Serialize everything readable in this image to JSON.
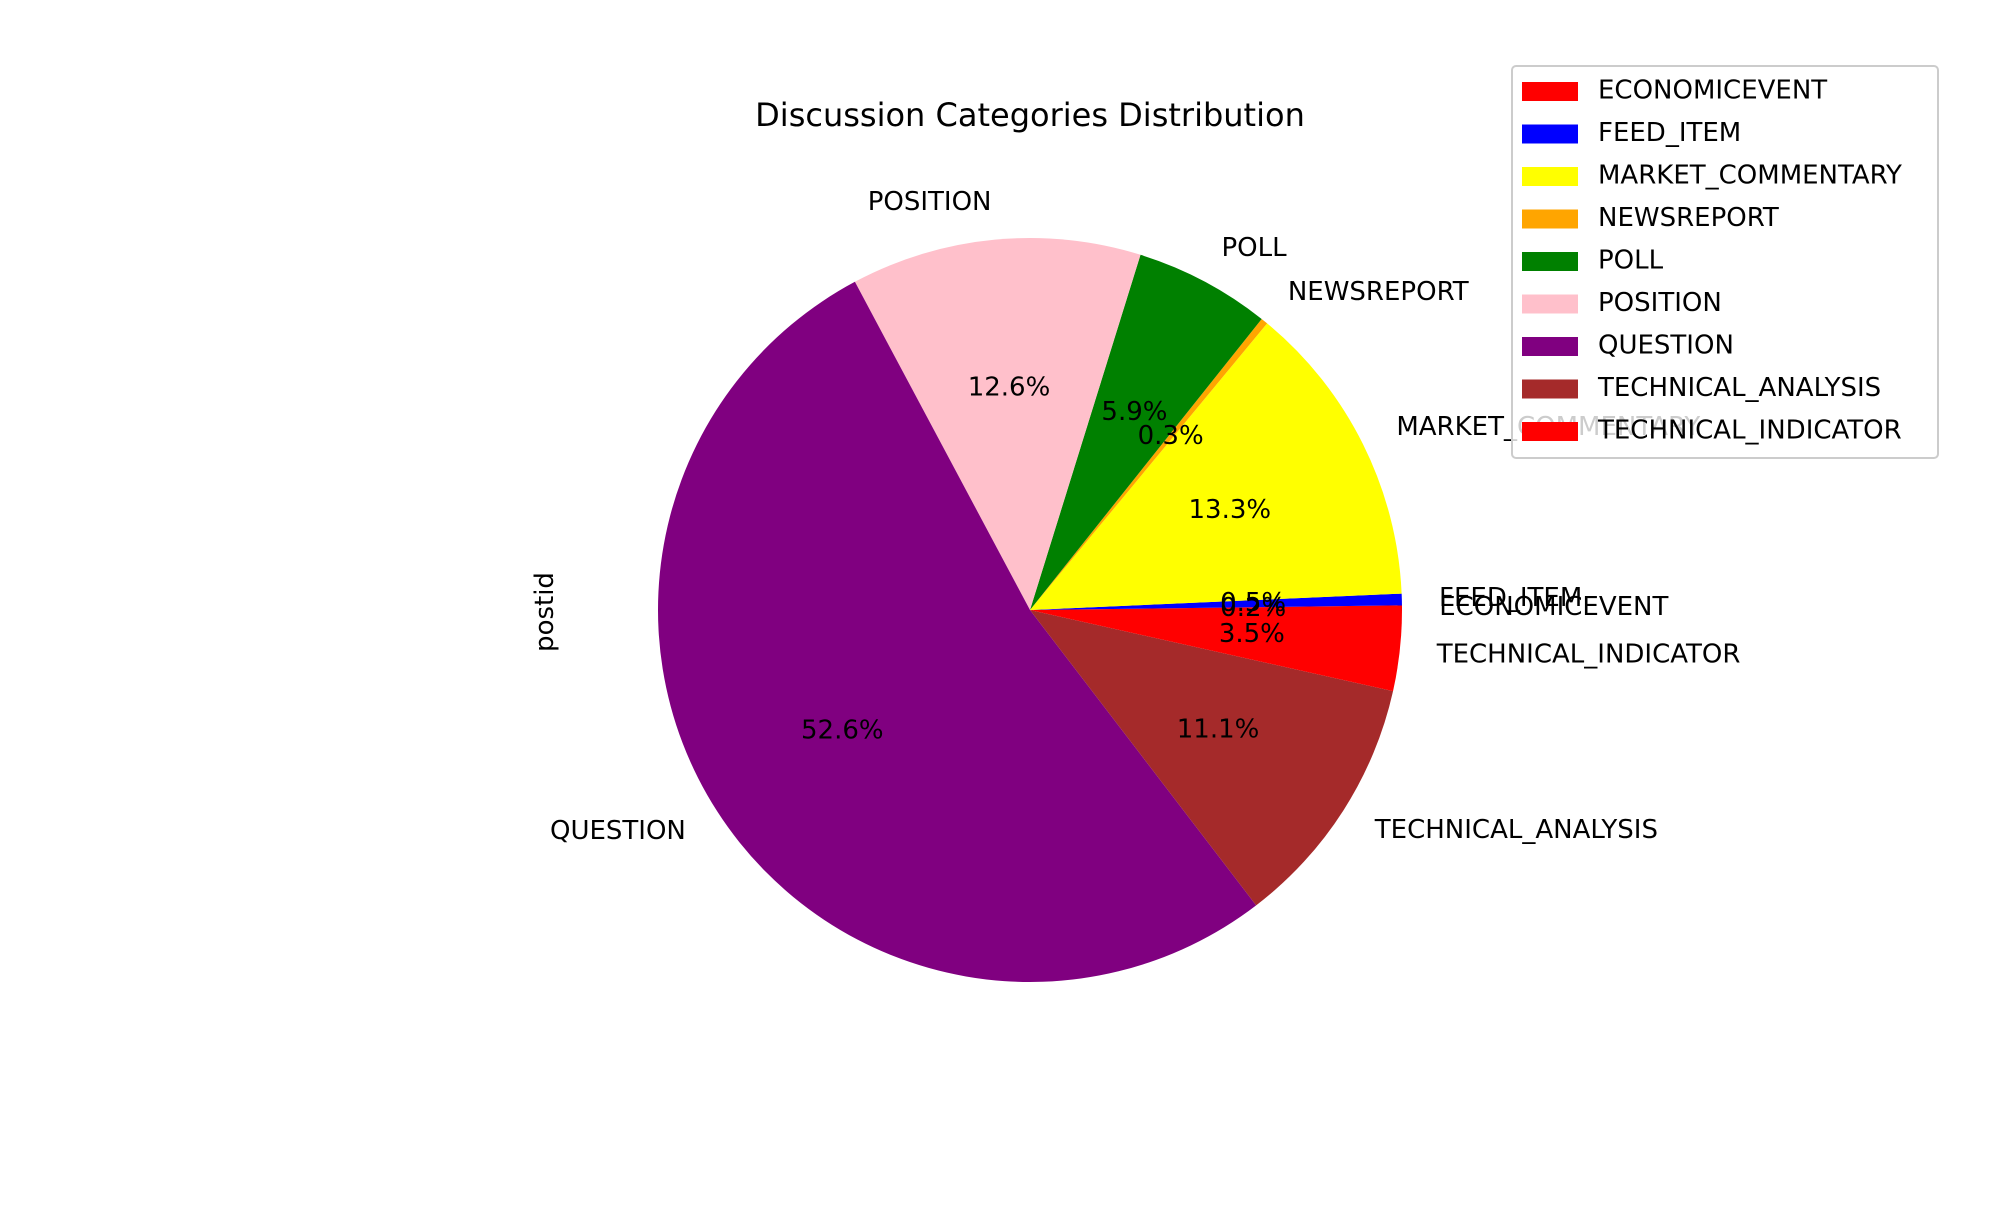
{
  "chart_data": {
    "type": "pie",
    "title": "Discussion Categories Distribution",
    "ylabel": "postid",
    "start_angle_deg": 0,
    "direction": "counterclockwise",
    "legend_position": "top-right",
    "slices": [
      {
        "name": "ECONOMICEVENT",
        "label": "ECONOMICEVENT",
        "pct_label": "0.2%",
        "value": 0.2,
        "color": "#ff0000"
      },
      {
        "name": "FEED_ITEM",
        "label": "FEED_ITEM",
        "pct_label": "0.5%",
        "value": 0.5,
        "color": "#0000ff"
      },
      {
        "name": "MARKET_COMMENTARY",
        "label": "MARKET_COMMENTARY",
        "pct_label": "13.3%",
        "value": 13.3,
        "color": "#ffff00"
      },
      {
        "name": "NEWSREPORT",
        "label": "NEWSREPORT",
        "pct_label": "0.3%",
        "value": 0.3,
        "color": "#ffa500"
      },
      {
        "name": "POLL",
        "label": "POLL",
        "pct_label": "5.9%",
        "value": 5.9,
        "color": "#008000"
      },
      {
        "name": "POSITION",
        "label": "POSITION",
        "pct_label": "12.6%",
        "value": 12.6,
        "color": "#ffc0cb"
      },
      {
        "name": "QUESTION",
        "label": "QUESTION",
        "pct_label": "52.6%",
        "value": 52.6,
        "color": "#800080"
      },
      {
        "name": "TECHNICAL_ANALYSIS",
        "label": "TECHNICAL_ANALYSIS",
        "pct_label": "11.1%",
        "value": 11.1,
        "color": "#a52a2a"
      },
      {
        "name": "TECHNICAL_INDICATOR",
        "label": "TECHNICAL_INDICATOR",
        "pct_label": "3.5%",
        "value": 3.5,
        "color": "#ff0000"
      }
    ]
  }
}
